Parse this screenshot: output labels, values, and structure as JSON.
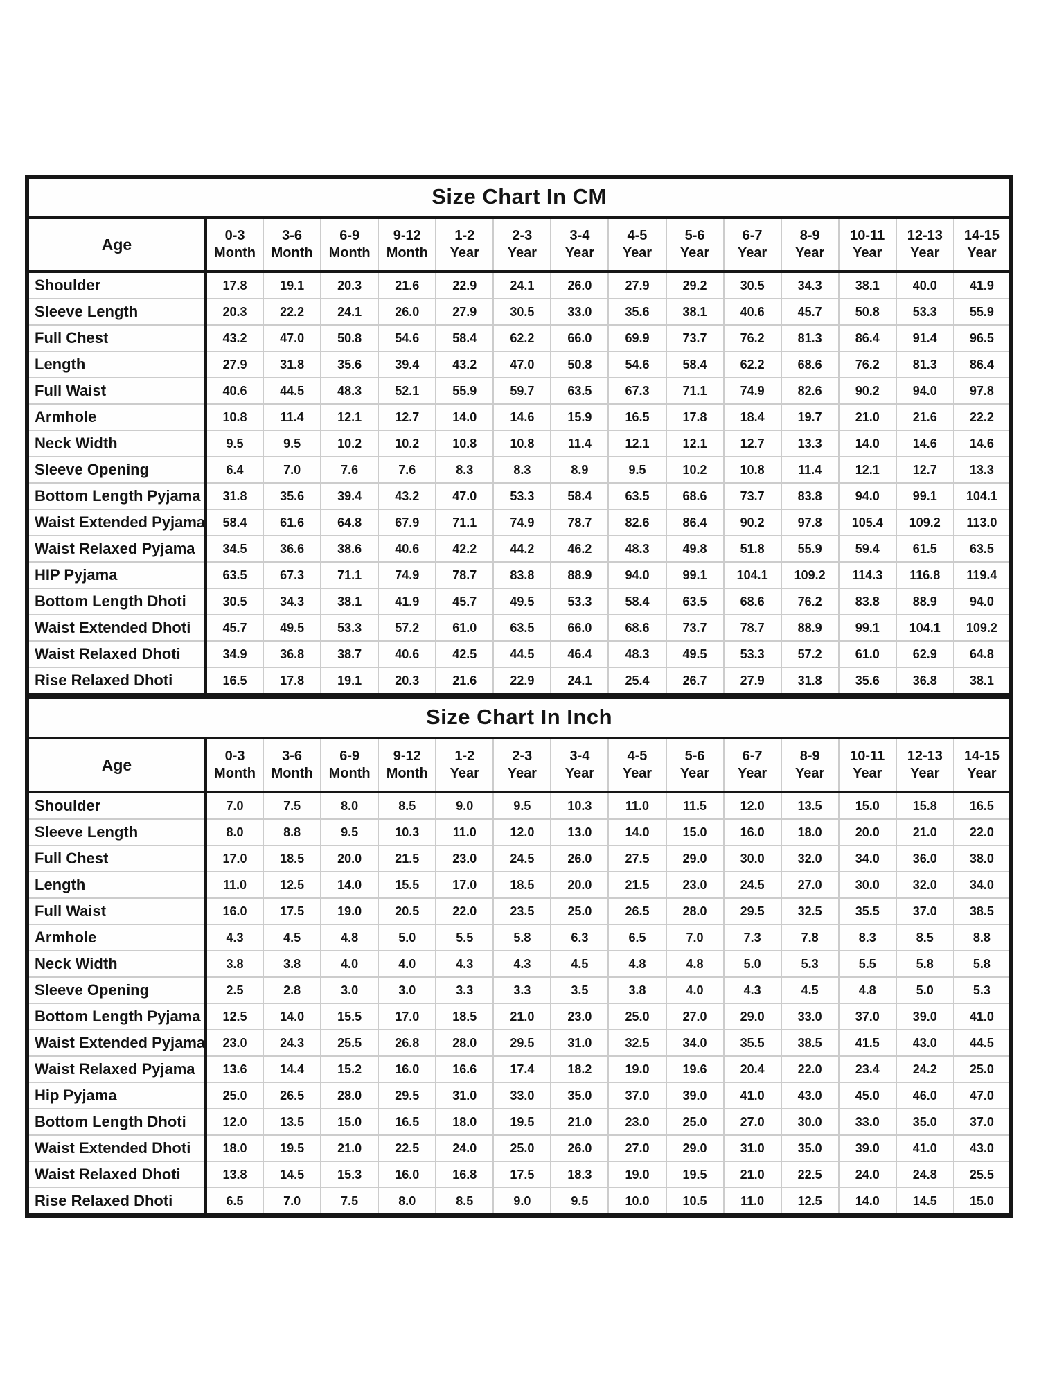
{
  "tables": [
    {
      "title": "Size Chart In CM",
      "age_header_label": "Age",
      "columns": [
        {
          "range": "0-3",
          "unit": "Month"
        },
        {
          "range": "3-6",
          "unit": "Month"
        },
        {
          "range": "6-9",
          "unit": "Month"
        },
        {
          "range": "9-12",
          "unit": "Month"
        },
        {
          "range": "1-2",
          "unit": "Year"
        },
        {
          "range": "2-3",
          "unit": "Year"
        },
        {
          "range": "3-4",
          "unit": "Year"
        },
        {
          "range": "4-5",
          "unit": "Year"
        },
        {
          "range": "5-6",
          "unit": "Year"
        },
        {
          "range": "6-7",
          "unit": "Year"
        },
        {
          "range": "8-9",
          "unit": "Year"
        },
        {
          "range": "10-11",
          "unit": "Year"
        },
        {
          "range": "12-13",
          "unit": "Year"
        },
        {
          "range": "14-15",
          "unit": "Year"
        }
      ],
      "rows": [
        {
          "label": "Shoulder",
          "values": [
            "17.8",
            "19.1",
            "20.3",
            "21.6",
            "22.9",
            "24.1",
            "26.0",
            "27.9",
            "29.2",
            "30.5",
            "34.3",
            "38.1",
            "40.0",
            "41.9"
          ]
        },
        {
          "label": "Sleeve Length",
          "values": [
            "20.3",
            "22.2",
            "24.1",
            "26.0",
            "27.9",
            "30.5",
            "33.0",
            "35.6",
            "38.1",
            "40.6",
            "45.7",
            "50.8",
            "53.3",
            "55.9"
          ]
        },
        {
          "label": "Full Chest",
          "values": [
            "43.2",
            "47.0",
            "50.8",
            "54.6",
            "58.4",
            "62.2",
            "66.0",
            "69.9",
            "73.7",
            "76.2",
            "81.3",
            "86.4",
            "91.4",
            "96.5"
          ]
        },
        {
          "label": "Length",
          "values": [
            "27.9",
            "31.8",
            "35.6",
            "39.4",
            "43.2",
            "47.0",
            "50.8",
            "54.6",
            "58.4",
            "62.2",
            "68.6",
            "76.2",
            "81.3",
            "86.4"
          ]
        },
        {
          "label": "Full Waist",
          "values": [
            "40.6",
            "44.5",
            "48.3",
            "52.1",
            "55.9",
            "59.7",
            "63.5",
            "67.3",
            "71.1",
            "74.9",
            "82.6",
            "90.2",
            "94.0",
            "97.8"
          ]
        },
        {
          "label": "Armhole",
          "values": [
            "10.8",
            "11.4",
            "12.1",
            "12.7",
            "14.0",
            "14.6",
            "15.9",
            "16.5",
            "17.8",
            "18.4",
            "19.7",
            "21.0",
            "21.6",
            "22.2"
          ]
        },
        {
          "label": "Neck Width",
          "values": [
            "9.5",
            "9.5",
            "10.2",
            "10.2",
            "10.8",
            "10.8",
            "11.4",
            "12.1",
            "12.1",
            "12.7",
            "13.3",
            "14.0",
            "14.6",
            "14.6"
          ]
        },
        {
          "label": "Sleeve Opening",
          "values": [
            "6.4",
            "7.0",
            "7.6",
            "7.6",
            "8.3",
            "8.3",
            "8.9",
            "9.5",
            "10.2",
            "10.8",
            "11.4",
            "12.1",
            "12.7",
            "13.3"
          ]
        },
        {
          "label": "Bottom Length Pyjama",
          "values": [
            "31.8",
            "35.6",
            "39.4",
            "43.2",
            "47.0",
            "53.3",
            "58.4",
            "63.5",
            "68.6",
            "73.7",
            "83.8",
            "94.0",
            "99.1",
            "104.1"
          ]
        },
        {
          "label": "Waist Extended Pyjama",
          "values": [
            "58.4",
            "61.6",
            "64.8",
            "67.9",
            "71.1",
            "74.9",
            "78.7",
            "82.6",
            "86.4",
            "90.2",
            "97.8",
            "105.4",
            "109.2",
            "113.0"
          ]
        },
        {
          "label": "Waist Relaxed Pyjama",
          "values": [
            "34.5",
            "36.6",
            "38.6",
            "40.6",
            "42.2",
            "44.2",
            "46.2",
            "48.3",
            "49.8",
            "51.8",
            "55.9",
            "59.4",
            "61.5",
            "63.5"
          ]
        },
        {
          "label": "HIP Pyjama",
          "values": [
            "63.5",
            "67.3",
            "71.1",
            "74.9",
            "78.7",
            "83.8",
            "88.9",
            "94.0",
            "99.1",
            "104.1",
            "109.2",
            "114.3",
            "116.8",
            "119.4"
          ]
        },
        {
          "label": "Bottom Length Dhoti",
          "values": [
            "30.5",
            "34.3",
            "38.1",
            "41.9",
            "45.7",
            "49.5",
            "53.3",
            "58.4",
            "63.5",
            "68.6",
            "76.2",
            "83.8",
            "88.9",
            "94.0"
          ]
        },
        {
          "label": "Waist Extended Dhoti",
          "values": [
            "45.7",
            "49.5",
            "53.3",
            "57.2",
            "61.0",
            "63.5",
            "66.0",
            "68.6",
            "73.7",
            "78.7",
            "88.9",
            "99.1",
            "104.1",
            "109.2"
          ]
        },
        {
          "label": "Waist Relaxed Dhoti",
          "values": [
            "34.9",
            "36.8",
            "38.7",
            "40.6",
            "42.5",
            "44.5",
            "46.4",
            "48.3",
            "49.5",
            "53.3",
            "57.2",
            "61.0",
            "62.9",
            "64.8"
          ]
        },
        {
          "label": "Rise Relaxed Dhoti",
          "values": [
            "16.5",
            "17.8",
            "19.1",
            "20.3",
            "21.6",
            "22.9",
            "24.1",
            "25.4",
            "26.7",
            "27.9",
            "31.8",
            "35.6",
            "36.8",
            "38.1"
          ]
        }
      ]
    },
    {
      "title": "Size Chart In Inch",
      "age_header_label": "Age",
      "columns": [
        {
          "range": "0-3",
          "unit": "Month"
        },
        {
          "range": "3-6",
          "unit": "Month"
        },
        {
          "range": "6-9",
          "unit": "Month"
        },
        {
          "range": "9-12",
          "unit": "Month"
        },
        {
          "range": "1-2",
          "unit": "Year"
        },
        {
          "range": "2-3",
          "unit": "Year"
        },
        {
          "range": "3-4",
          "unit": "Year"
        },
        {
          "range": "4-5",
          "unit": "Year"
        },
        {
          "range": "5-6",
          "unit": "Year"
        },
        {
          "range": "6-7",
          "unit": "Year"
        },
        {
          "range": "8-9",
          "unit": "Year"
        },
        {
          "range": "10-11",
          "unit": "Year"
        },
        {
          "range": "12-13",
          "unit": "Year"
        },
        {
          "range": "14-15",
          "unit": "Year"
        }
      ],
      "rows": [
        {
          "label": "Shoulder",
          "values": [
            "7.0",
            "7.5",
            "8.0",
            "8.5",
            "9.0",
            "9.5",
            "10.3",
            "11.0",
            "11.5",
            "12.0",
            "13.5",
            "15.0",
            "15.8",
            "16.5"
          ]
        },
        {
          "label": "Sleeve Length",
          "values": [
            "8.0",
            "8.8",
            "9.5",
            "10.3",
            "11.0",
            "12.0",
            "13.0",
            "14.0",
            "15.0",
            "16.0",
            "18.0",
            "20.0",
            "21.0",
            "22.0"
          ]
        },
        {
          "label": "Full Chest",
          "values": [
            "17.0",
            "18.5",
            "20.0",
            "21.5",
            "23.0",
            "24.5",
            "26.0",
            "27.5",
            "29.0",
            "30.0",
            "32.0",
            "34.0",
            "36.0",
            "38.0"
          ]
        },
        {
          "label": "Length",
          "values": [
            "11.0",
            "12.5",
            "14.0",
            "15.5",
            "17.0",
            "18.5",
            "20.0",
            "21.5",
            "23.0",
            "24.5",
            "27.0",
            "30.0",
            "32.0",
            "34.0"
          ]
        },
        {
          "label": "Full Waist",
          "values": [
            "16.0",
            "17.5",
            "19.0",
            "20.5",
            "22.0",
            "23.5",
            "25.0",
            "26.5",
            "28.0",
            "29.5",
            "32.5",
            "35.5",
            "37.0",
            "38.5"
          ]
        },
        {
          "label": "Armhole",
          "values": [
            "4.3",
            "4.5",
            "4.8",
            "5.0",
            "5.5",
            "5.8",
            "6.3",
            "6.5",
            "7.0",
            "7.3",
            "7.8",
            "8.3",
            "8.5",
            "8.8"
          ]
        },
        {
          "label": "Neck Width",
          "values": [
            "3.8",
            "3.8",
            "4.0",
            "4.0",
            "4.3",
            "4.3",
            "4.5",
            "4.8",
            "4.8",
            "5.0",
            "5.3",
            "5.5",
            "5.8",
            "5.8"
          ]
        },
        {
          "label": "Sleeve Opening",
          "values": [
            "2.5",
            "2.8",
            "3.0",
            "3.0",
            "3.3",
            "3.3",
            "3.5",
            "3.8",
            "4.0",
            "4.3",
            "4.5",
            "4.8",
            "5.0",
            "5.3"
          ]
        },
        {
          "label": "Bottom Length Pyjama",
          "values": [
            "12.5",
            "14.0",
            "15.5",
            "17.0",
            "18.5",
            "21.0",
            "23.0",
            "25.0",
            "27.0",
            "29.0",
            "33.0",
            "37.0",
            "39.0",
            "41.0"
          ]
        },
        {
          "label": "Waist Extended Pyjama",
          "values": [
            "23.0",
            "24.3",
            "25.5",
            "26.8",
            "28.0",
            "29.5",
            "31.0",
            "32.5",
            "34.0",
            "35.5",
            "38.5",
            "41.5",
            "43.0",
            "44.5"
          ]
        },
        {
          "label": "Waist Relaxed Pyjama",
          "values": [
            "13.6",
            "14.4",
            "15.2",
            "16.0",
            "16.6",
            "17.4",
            "18.2",
            "19.0",
            "19.6",
            "20.4",
            "22.0",
            "23.4",
            "24.2",
            "25.0"
          ]
        },
        {
          "label": "Hip Pyjama",
          "values": [
            "25.0",
            "26.5",
            "28.0",
            "29.5",
            "31.0",
            "33.0",
            "35.0",
            "37.0",
            "39.0",
            "41.0",
            "43.0",
            "45.0",
            "46.0",
            "47.0"
          ]
        },
        {
          "label": "Bottom Length Dhoti",
          "values": [
            "12.0",
            "13.5",
            "15.0",
            "16.5",
            "18.0",
            "19.5",
            "21.0",
            "23.0",
            "25.0",
            "27.0",
            "30.0",
            "33.0",
            "35.0",
            "37.0"
          ]
        },
        {
          "label": "Waist Extended Dhoti",
          "values": [
            "18.0",
            "19.5",
            "21.0",
            "22.5",
            "24.0",
            "25.0",
            "26.0",
            "27.0",
            "29.0",
            "31.0",
            "35.0",
            "39.0",
            "41.0",
            "43.0"
          ]
        },
        {
          "label": "Waist Relaxed Dhoti",
          "values": [
            "13.8",
            "14.5",
            "15.3",
            "16.0",
            "16.8",
            "17.5",
            "18.3",
            "19.0",
            "19.5",
            "21.0",
            "22.5",
            "24.0",
            "24.8",
            "25.5"
          ]
        },
        {
          "label": "Rise Relaxed Dhoti",
          "values": [
            "6.5",
            "7.0",
            "7.5",
            "8.0",
            "8.5",
            "9.0",
            "9.5",
            "10.0",
            "10.5",
            "11.0",
            "12.5",
            "14.0",
            "14.5",
            "15.0"
          ]
        }
      ]
    }
  ]
}
